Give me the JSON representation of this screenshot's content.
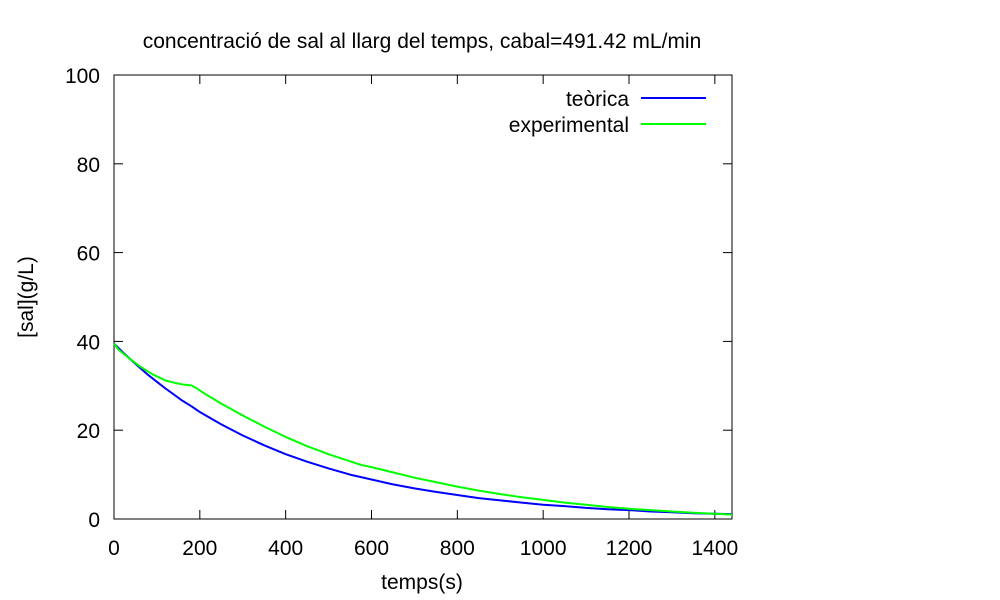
{
  "chart_data": {
    "type": "line",
    "title": "concentració de sal al llarg del temps, cabal=491.42 mL/min",
    "xlabel": "temps(s)",
    "ylabel": "[sal](g/L)",
    "xlim": [
      0,
      1440
    ],
    "ylim": [
      0,
      100
    ],
    "xticks": [
      0,
      200,
      400,
      600,
      800,
      1000,
      1200,
      1400
    ],
    "yticks": [
      0,
      20,
      40,
      60,
      80,
      100
    ],
    "xtick_labels": [
      "0",
      "200",
      "400",
      "600",
      "800",
      "1000",
      "1200",
      "1400"
    ],
    "ytick_labels": [
      "0",
      "20",
      "40",
      "60",
      "80",
      "100"
    ],
    "grid": false,
    "legend": "top-right",
    "series": [
      {
        "name": "teòrica",
        "color": "#0000ff",
        "x": [
          0,
          20,
          40,
          60,
          80,
          100,
          120,
          140,
          160,
          180,
          200,
          250,
          300,
          350,
          400,
          450,
          500,
          550,
          600,
          650,
          700,
          750,
          800,
          850,
          900,
          950,
          1000,
          1050,
          1100,
          1150,
          1200,
          1250,
          1300,
          1350,
          1400,
          1440
        ],
        "y": [
          39.5,
          37.6,
          35.8,
          34.1,
          32.4,
          30.9,
          29.4,
          28.0,
          26.6,
          25.4,
          24.1,
          21.3,
          18.8,
          16.6,
          14.6,
          12.9,
          11.4,
          10.0,
          8.9,
          7.8,
          6.9,
          6.1,
          5.4,
          4.7,
          4.2,
          3.7,
          3.2,
          2.9,
          2.5,
          2.2,
          2.0,
          1.7,
          1.5,
          1.3,
          1.2,
          1.1
        ]
      },
      {
        "name": "experimental",
        "color": "#00ff00",
        "x": [
          0,
          10,
          30,
          60,
          90,
          120,
          140,
          160,
          180,
          190,
          210,
          250,
          300,
          350,
          400,
          450,
          500,
          550,
          575,
          600,
          650,
          700,
          750,
          800,
          850,
          900,
          950,
          1000,
          1050,
          1100,
          1150,
          1200,
          1250,
          1300,
          1350,
          1400,
          1440
        ],
        "y": [
          39.5,
          38.2,
          36.6,
          34.4,
          32.6,
          31.2,
          30.7,
          30.3,
          30.1,
          29.6,
          28.3,
          26.0,
          23.3,
          20.8,
          18.5,
          16.4,
          14.6,
          13.0,
          12.2,
          11.7,
          10.5,
          9.3,
          8.3,
          7.3,
          6.4,
          5.6,
          4.9,
          4.3,
          3.7,
          3.2,
          2.7,
          2.3,
          2.0,
          1.7,
          1.4,
          1.2,
          1.0
        ]
      }
    ]
  }
}
